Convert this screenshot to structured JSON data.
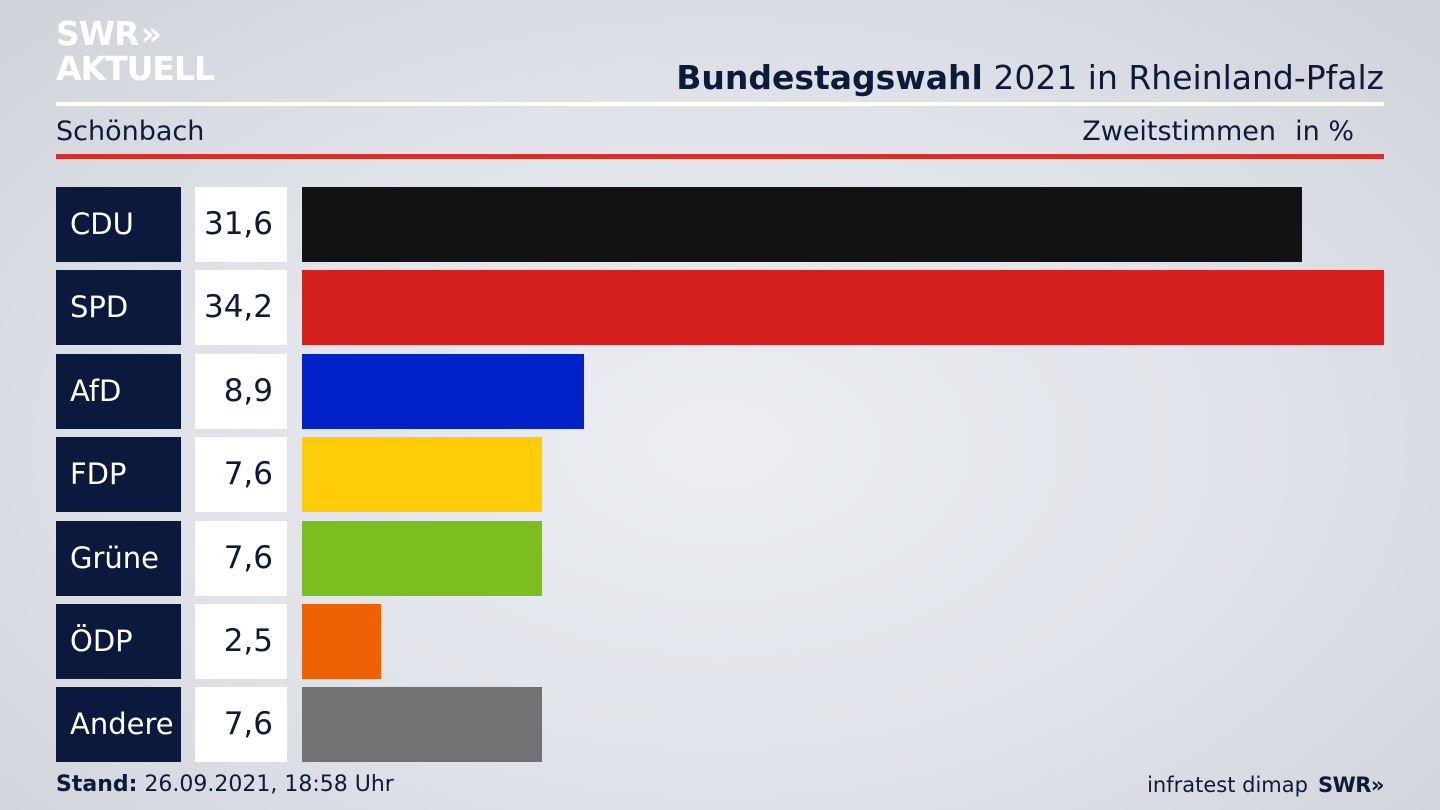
{
  "logo": {
    "line1": "SWR",
    "chevrons": "»",
    "line2": "AKTUELL"
  },
  "header": {
    "title_bold": "Bundestagswahl",
    "title_rest": " 2021 in Rheinland-Pfalz",
    "subtitle": "Schönbach",
    "vote_type": "Zweitstimmen",
    "unit": "in %"
  },
  "colors": {
    "CDU": "#121212",
    "SPD": "#d62020",
    "AfD": "#0022c8",
    "FDP": "#ffcc0a",
    "Grüne": "#7abf1e",
    "ÖDP": "#ee6205",
    "Andere": "#727274",
    "accent_rule": "#d6302b",
    "navy": "#0b1a3c"
  },
  "chart_data": {
    "type": "bar",
    "orientation": "horizontal",
    "categories": [
      "CDU",
      "SPD",
      "AfD",
      "FDP",
      "Grüne",
      "ÖDP",
      "Andere"
    ],
    "values": [
      31.6,
      34.2,
      8.9,
      7.6,
      7.6,
      2.5,
      7.6
    ],
    "value_labels": [
      "31,6",
      "34,2",
      "8,9",
      "7,6",
      "7,6",
      "2,5",
      "7,6"
    ],
    "title": "Bundestagswahl 2021 in Rheinland-Pfalz",
    "subtitle": "Schönbach",
    "xlabel": "Zweitstimmen",
    "ylabel": "",
    "unit": "in %",
    "xlim": [
      0,
      34.2
    ],
    "grid": false,
    "legend": "none"
  },
  "footer": {
    "stand_label": "Stand:",
    "stand_value": " 26.09.2021, 18:58 Uhr",
    "source": "infratest dimap",
    "brand": "SWR",
    "brand_chevrons": "»"
  }
}
